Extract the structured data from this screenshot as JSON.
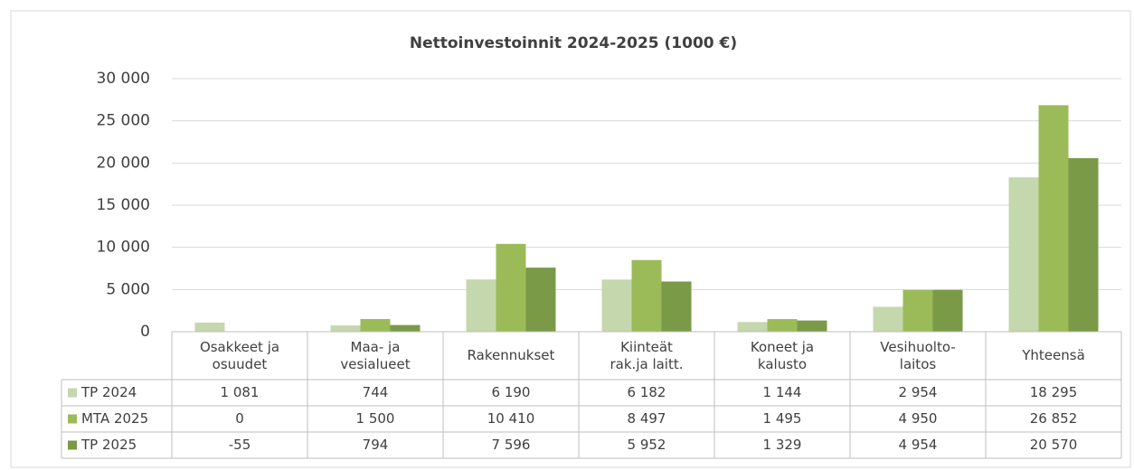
{
  "chart_data": {
    "type": "bar",
    "title": "Nettoinvestoinnit 2024-2025 (1000 €)",
    "categories": [
      "Osakkeet ja\nosuudet",
      "Maa- ja\nvesialueet",
      "Rakennukset",
      "Kiinteät\nrak.ja laitt.",
      "Koneet ja\nkalusto",
      "Vesihuolto-\nlaitos",
      "Yhteensä"
    ],
    "series": [
      {
        "name": "TP 2024",
        "color": "#c4d7ad",
        "values": [
          1081,
          744,
          6190,
          6182,
          1144,
          2954,
          18295
        ],
        "value_labels": [
          "1 081",
          "744",
          "6 190",
          "6 182",
          "1 144",
          "2 954",
          "18 295"
        ]
      },
      {
        "name": "MTA 2025",
        "color": "#9bbb59",
        "values": [
          0,
          1500,
          10410,
          8497,
          1495,
          4950,
          26852
        ],
        "value_labels": [
          "0",
          "1 500",
          "10 410",
          "8 497",
          "1 495",
          "4 950",
          "26 852"
        ]
      },
      {
        "name": "TP 2025",
        "color": "#7a9a48",
        "values": [
          -55,
          794,
          7596,
          5952,
          1329,
          4954,
          20570
        ],
        "value_labels": [
          "-55",
          "794",
          "7 596",
          "5 952",
          "1 329",
          "4 954",
          "20 570"
        ]
      }
    ],
    "ylim": [
      0,
      30000
    ],
    "yticks": [
      0,
      {
        "value": 5000,
        "label": "5 000"
      },
      {
        "value": 10000,
        "label": "10 000"
      },
      {
        "value": 15000,
        "label": "15 000"
      },
      {
        "value": 20000,
        "label": "20 000"
      },
      {
        "value": 25000,
        "label": "25 000"
      },
      {
        "value": 30000,
        "label": "30 000"
      }
    ],
    "grid": true
  }
}
